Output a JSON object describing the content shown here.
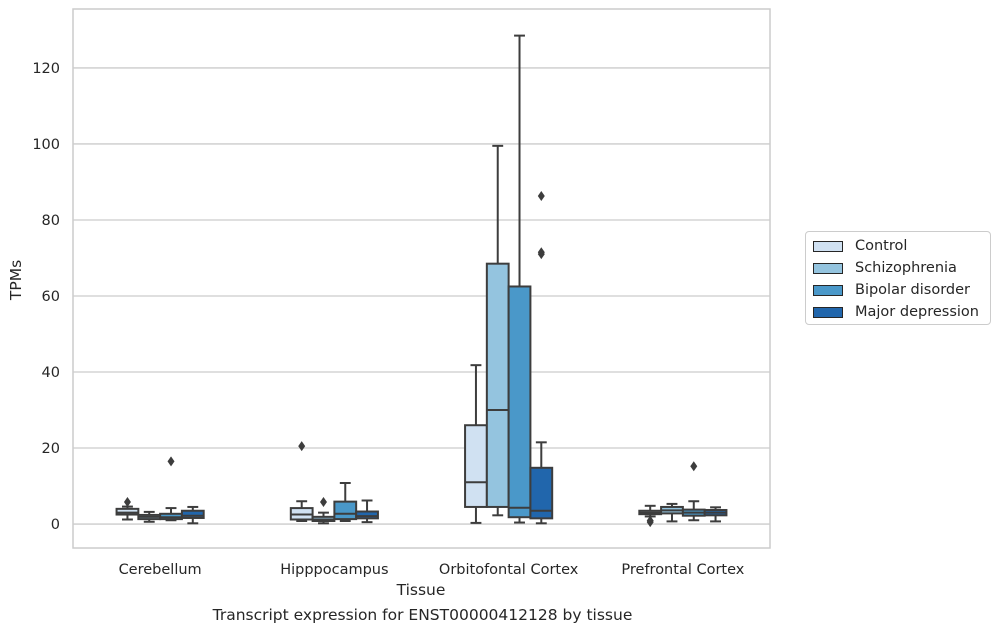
{
  "caption": "Transcript expression for ENST00000412128 by tissue",
  "chart_data": {
    "type": "box",
    "xlabel": "Tissue",
    "ylabel": "TPMs",
    "ylim": [
      -6.3,
      135.5
    ],
    "yticks": [
      0,
      20,
      40,
      60,
      80,
      100,
      120
    ],
    "grid": "horizontal",
    "legend_position": "right",
    "categories": [
      "Cerebellum",
      "Hipppocampus",
      "Orbitofontal Cortex",
      "Prefrontal Cortex"
    ],
    "series": [
      {
        "name": "Control",
        "color": "#d0e1f2",
        "boxes": [
          {
            "whislo": 1.2,
            "q1": 2.5,
            "med": 3.0,
            "q3": 4.0,
            "whishi": 4.6,
            "fliers": [
              5.8
            ]
          },
          {
            "whislo": 0.8,
            "q1": 1.2,
            "med": 2.5,
            "q3": 4.2,
            "whishi": 6.0,
            "fliers": [
              20.5
            ]
          },
          {
            "whislo": 0.3,
            "q1": 4.5,
            "med": 11.0,
            "q3": 26.0,
            "whishi": 41.8,
            "fliers": []
          },
          {
            "whislo": 2.0,
            "q1": 2.6,
            "med": 3.0,
            "q3": 3.5,
            "whishi": 4.8,
            "fliers": [
              0.5,
              0.9
            ]
          }
        ]
      },
      {
        "name": "Schizophrenia",
        "color": "#94c4df",
        "boxes": [
          {
            "whislo": 0.6,
            "q1": 1.3,
            "med": 1.9,
            "q3": 2.4,
            "whishi": 3.2,
            "fliers": []
          },
          {
            "whislo": 0.2,
            "q1": 0.8,
            "med": 1.2,
            "q3": 1.9,
            "whishi": 3.0,
            "fliers": [
              5.8
            ]
          },
          {
            "whislo": 2.3,
            "q1": 4.5,
            "med": 30.0,
            "q3": 68.5,
            "whishi": 99.5,
            "fliers": []
          },
          {
            "whislo": 0.7,
            "q1": 2.8,
            "med": 3.6,
            "q3": 4.5,
            "whishi": 5.3,
            "fliers": []
          }
        ]
      },
      {
        "name": "Bipolar disorder",
        "color": "#4a98c9",
        "boxes": [
          {
            "whislo": 1.0,
            "q1": 1.3,
            "med": 1.8,
            "q3": 2.7,
            "whishi": 4.2,
            "fliers": [
              16.5
            ]
          },
          {
            "whislo": 0.8,
            "q1": 1.3,
            "med": 2.7,
            "q3": 5.9,
            "whishi": 10.8,
            "fliers": []
          },
          {
            "whislo": 0.4,
            "q1": 1.8,
            "med": 4.3,
            "q3": 62.5,
            "whishi": 128.5,
            "fliers": []
          },
          {
            "whislo": 1.0,
            "q1": 2.2,
            "med": 3.0,
            "q3": 3.8,
            "whishi": 6.0,
            "fliers": [
              15.2
            ]
          }
        ]
      },
      {
        "name": "Major depression",
        "color": "#2166ac",
        "boxes": [
          {
            "whislo": 0.2,
            "q1": 1.6,
            "med": 2.2,
            "q3": 3.5,
            "whishi": 4.5,
            "fliers": []
          },
          {
            "whislo": 0.5,
            "q1": 1.5,
            "med": 2.1,
            "q3": 3.3,
            "whishi": 6.2,
            "fliers": []
          },
          {
            "whislo": 0.2,
            "q1": 1.5,
            "med": 3.5,
            "q3": 14.8,
            "whishi": 21.5,
            "fliers": [
              71.0,
              71.5,
              86.3
            ]
          },
          {
            "whislo": 0.7,
            "q1": 2.3,
            "med": 3.0,
            "q3": 3.7,
            "whishi": 4.4,
            "fliers": []
          }
        ]
      }
    ]
  }
}
